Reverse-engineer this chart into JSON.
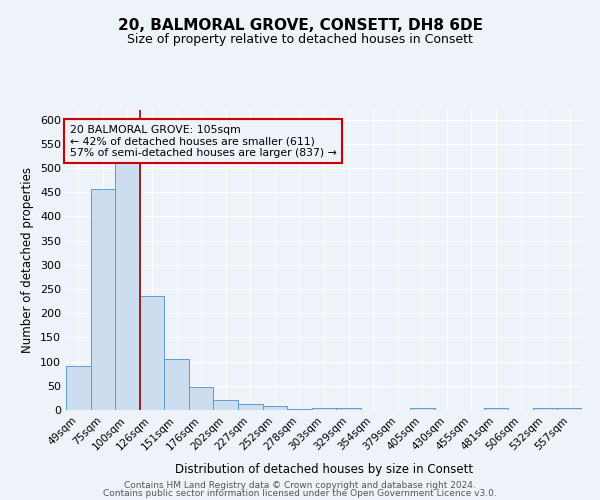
{
  "title_line1": "20, BALMORAL GROVE, CONSETT, DH8 6DE",
  "title_line2": "Size of property relative to detached houses in Consett",
  "xlabel": "Distribution of detached houses by size in Consett",
  "ylabel": "Number of detached properties",
  "bar_labels": [
    "49sqm",
    "75sqm",
    "100sqm",
    "126sqm",
    "151sqm",
    "176sqm",
    "202sqm",
    "227sqm",
    "252sqm",
    "278sqm",
    "303sqm",
    "329sqm",
    "354sqm",
    "379sqm",
    "405sqm",
    "430sqm",
    "455sqm",
    "481sqm",
    "506sqm",
    "532sqm",
    "557sqm"
  ],
  "bar_values": [
    90,
    457,
    530,
    236,
    105,
    47,
    20,
    13,
    8,
    2,
    5,
    5,
    1,
    0,
    5,
    1,
    0,
    5,
    1,
    5,
    5
  ],
  "bar_color": "#ccddf0",
  "bar_edge_color": "#5b9bd5",
  "reference_line_x": 2,
  "reference_line_color": "#aa0000",
  "annotation_text_line1": "20 BALMORAL GROVE: 105sqm",
  "annotation_text_line2": "← 42% of detached houses are smaller (611)",
  "annotation_text_line3": "57% of semi-detached houses are larger (837) →",
  "ylim": [
    0,
    620
  ],
  "yticks": [
    0,
    50,
    100,
    150,
    200,
    250,
    300,
    350,
    400,
    450,
    500,
    550,
    600
  ],
  "background_color": "#eef2f9",
  "grid_color": "#ffffff",
  "footer_line1": "Contains HM Land Registry data © Crown copyright and database right 2024.",
  "footer_line2": "Contains public sector information licensed under the Open Government Licence v3.0."
}
